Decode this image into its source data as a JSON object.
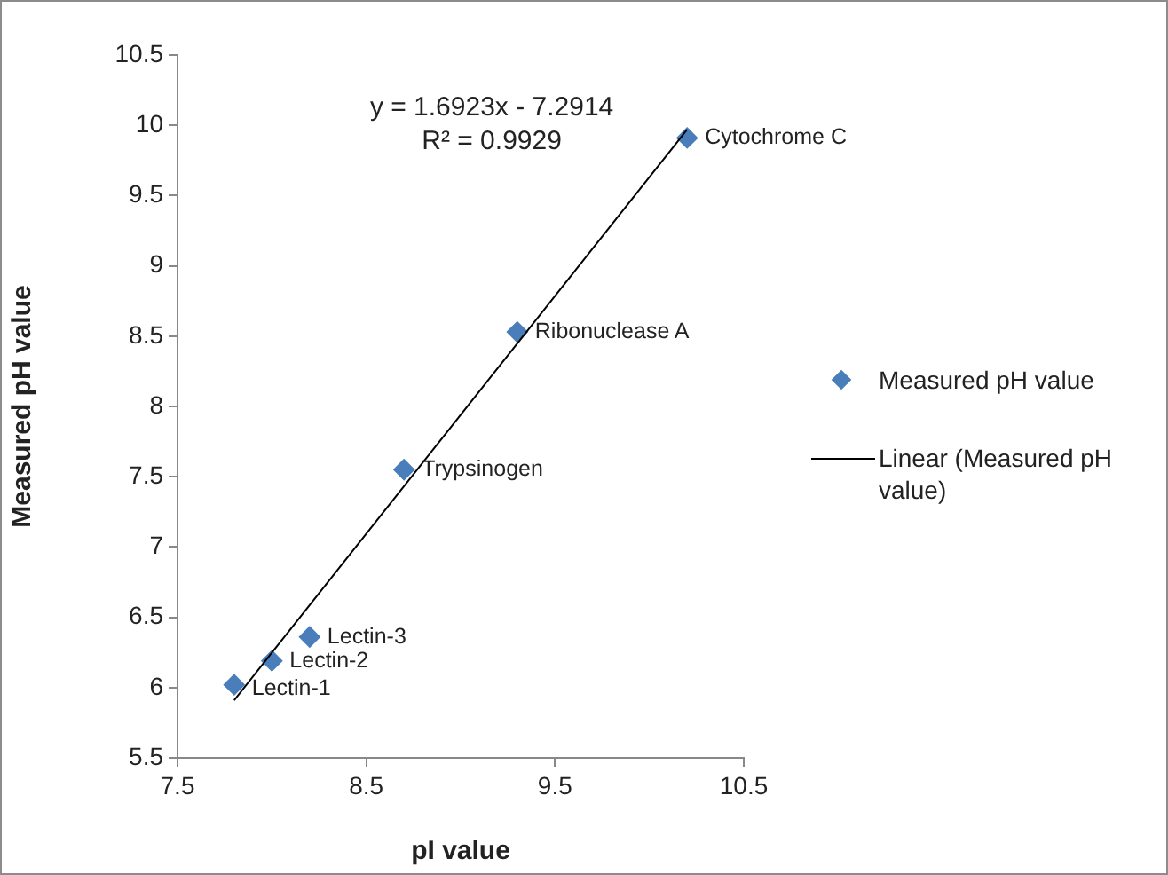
{
  "chart_data": {
    "type": "scatter",
    "xlabel": "pI value",
    "ylabel": "Measured pH value",
    "xlim": [
      7.5,
      10.5
    ],
    "xticks": [
      7.5,
      8.5,
      9.5,
      10.5
    ],
    "ylim": [
      5.5,
      10.5
    ],
    "yticks": [
      5.5,
      6,
      6.5,
      7,
      7.5,
      8,
      8.5,
      9,
      9.5,
      10,
      10.5
    ],
    "grid": false,
    "legend": "right",
    "series": [
      {
        "name": "Measured pH value",
        "marker": "diamond",
        "color": "#4a7ebb",
        "x": [
          7.8,
          8.0,
          8.2,
          8.7,
          9.3,
          10.2
        ],
        "values": [
          6.02,
          6.19,
          6.36,
          7.55,
          8.53,
          9.91
        ]
      },
      {
        "name": "Linear (Measured pH value)",
        "type": "line",
        "marker": "none",
        "line_style": "solid",
        "color": "#000000",
        "x": [
          7.8,
          10.2
        ],
        "values": [
          5.91,
          9.97
        ]
      }
    ],
    "annotations": [
      {
        "text": "Lectin-1",
        "x": 7.8,
        "y": 6.02
      },
      {
        "text": "Lectin-2",
        "x": 8.0,
        "y": 6.19
      },
      {
        "text": "Lectin-3",
        "x": 8.2,
        "y": 6.36
      },
      {
        "text": "Trypsinogen",
        "x": 8.7,
        "y": 7.55
      },
      {
        "text": "Ribonuclease A",
        "x": 9.3,
        "y": 8.53
      },
      {
        "text": "Cytochrome C",
        "x": 10.2,
        "y": 9.91
      },
      "y = 1.6923x - 7.2914",
      "R² = 0.9929"
    ]
  }
}
